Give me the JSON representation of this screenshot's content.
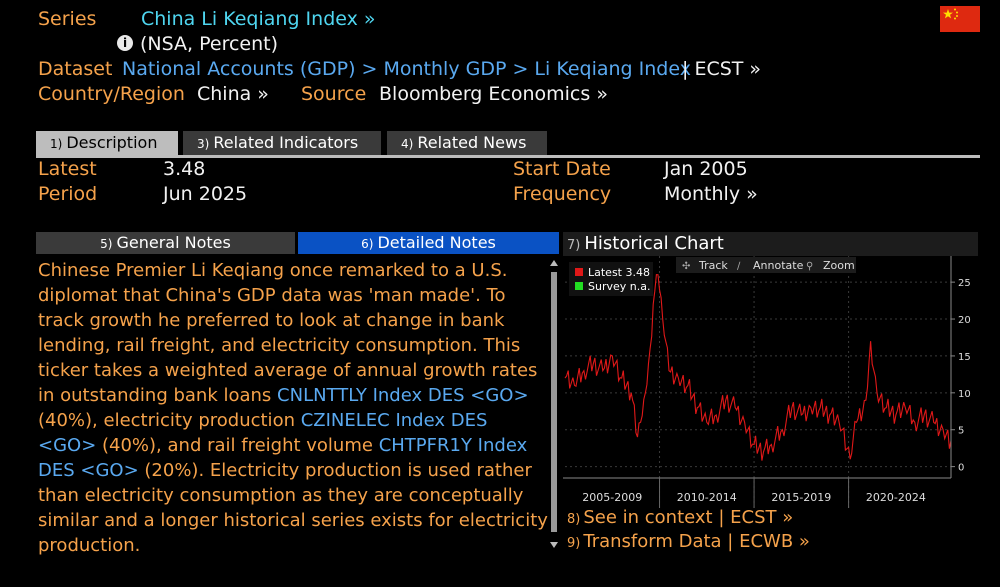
{
  "header": {
    "series_label": "Series",
    "series_value": "China Li Keqiang Index »",
    "info_text": "(NSA, Percent)",
    "dataset_label": "Dataset",
    "dataset_path": "National Accounts (GDP) > Monthly GDP > Li Keqiang Index",
    "dataset_ecst": "| ECST »",
    "country_label": "Country/Region",
    "country_value": "China »",
    "source_label": "Source",
    "source_value": "Bloomberg Economics »"
  },
  "tabs": [
    {
      "num": "1)",
      "label": "Description",
      "active": true
    },
    {
      "num": "3)",
      "label": "Related Indicators",
      "active": false
    },
    {
      "num": "4)",
      "label": "Related News",
      "active": false
    }
  ],
  "summary": {
    "latest_label": "Latest",
    "latest_value": "3.48",
    "period_label": "Period",
    "period_value": "Jun 2025",
    "start_label": "Start Date",
    "start_value": "Jan 2005",
    "freq_label": "Frequency",
    "freq_value": "Monthly »"
  },
  "notes_tabs": [
    {
      "num": "5)",
      "label": "General Notes",
      "active": false
    },
    {
      "num": "6)",
      "label": "Detailed Notes",
      "active": true
    }
  ],
  "notes": {
    "t1": "Chinese Premier Li Keqiang once remarked to a  U.S. diplomat that China's GDP data was 'man made'. To track growth he preferred to look at change in bank lending, rail freight, and electricity consumption. This ticker takes a weighted average of annual growth rates in outstanding bank loans ",
    "l1": "CNLNTTLY Index DES <GO>",
    "t2": " (40%), electricity production ",
    "l2": "CZINELEC  Index DES <GO>",
    "t3": " (40%), and rail freight volume ",
    "l3": "CHTPFR1Y Index DES <GO>",
    "t4": " (20%). Electricity production is used rather than electricity  consumption as they are conceptually similar  and a longer historical series exists for electricity production."
  },
  "chart": {
    "num": "7)",
    "title": "Historical Chart",
    "legend_latest": "Latest  3.48",
    "legend_survey": "Survey n.a.",
    "tools": [
      "Track",
      "Annotate",
      "Zoom"
    ],
    "colors": {
      "line": "#e01818",
      "survey": "#22dd22",
      "grid": "#3a3a3a"
    }
  },
  "footer": [
    {
      "num": "8)",
      "label": "See in context | ECST »"
    },
    {
      "num": "9)",
      "label": "Transform Data | ECWB »"
    }
  ],
  "chart_data": {
    "type": "line",
    "ylim": [
      -1,
      28
    ],
    "yticks": [
      0,
      5,
      10,
      15,
      20,
      25
    ],
    "x_start": "2005-01",
    "x_end": "2025-06",
    "period_labels": [
      "2005-2009",
      "2010-2014",
      "2015-2019",
      "2020-2024"
    ],
    "series": [
      {
        "name": "Latest",
        "x": [
          "2005-01",
          "2005-07",
          "2006-01",
          "2006-07",
          "2007-01",
          "2007-07",
          "2008-01",
          "2008-07",
          "2008-11",
          "2009-01",
          "2009-04",
          "2009-07",
          "2009-09",
          "2009-12",
          "2010-03",
          "2010-07",
          "2011-01",
          "2011-07",
          "2012-01",
          "2012-07",
          "2013-01",
          "2013-07",
          "2014-01",
          "2014-07",
          "2015-01",
          "2015-07",
          "2015-12",
          "2016-07",
          "2017-01",
          "2017-07",
          "2018-01",
          "2018-07",
          "2019-01",
          "2019-07",
          "2020-02",
          "2020-06",
          "2020-12",
          "2021-03",
          "2021-07",
          "2022-01",
          "2022-07",
          "2023-01",
          "2023-07",
          "2024-01",
          "2024-07",
          "2025-01",
          "2025-06"
        ],
        "values": [
          12,
          11,
          13,
          14,
          13,
          15,
          12,
          10,
          4,
          6,
          10,
          16,
          22,
          26,
          20,
          13,
          12,
          11,
          8,
          6,
          7,
          9,
          8,
          6,
          3,
          2,
          3,
          5,
          8,
          7,
          8,
          8,
          7,
          6,
          1,
          6,
          9,
          17,
          10,
          8,
          7,
          8,
          6,
          7,
          6,
          5,
          3.48
        ]
      }
    ]
  }
}
